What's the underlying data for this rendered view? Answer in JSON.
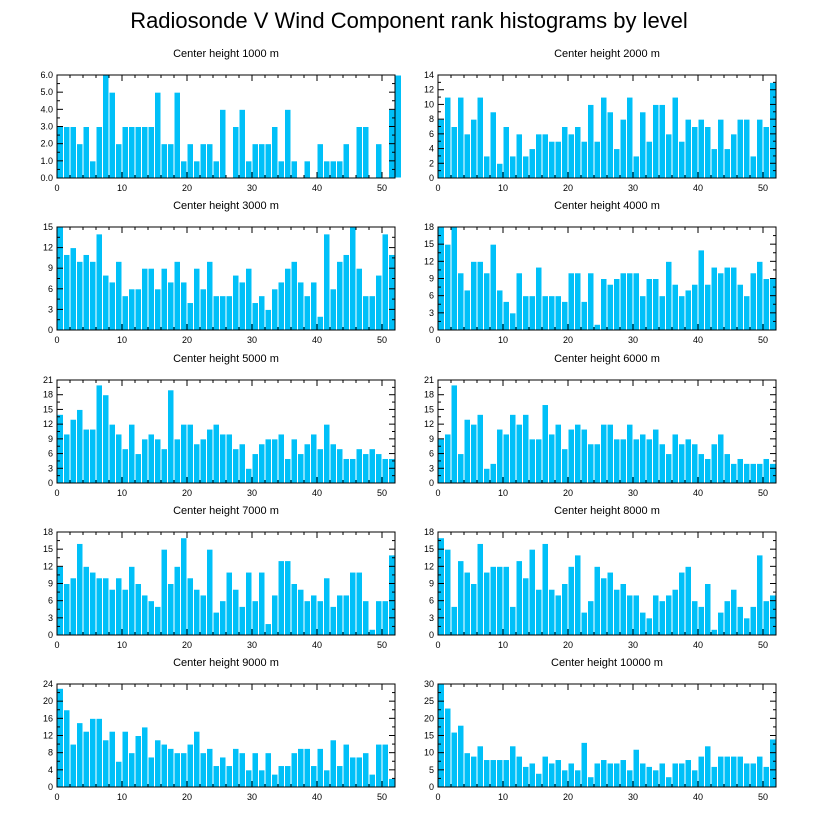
{
  "title": "Radiosonde V Wind Component rank histograms by level",
  "colors": {
    "bar": "#00c0f8",
    "bar_edge": "#ffffff",
    "axis": "#000000"
  },
  "chart_data": [
    {
      "type": "bar",
      "title": "Center height 1000 m",
      "xlim": [
        0,
        52
      ],
      "xticks": [
        0,
        10,
        20,
        30,
        40,
        50
      ],
      "ylim": [
        0,
        6
      ],
      "yticks": [
        0,
        1,
        2,
        3,
        4,
        5,
        6
      ],
      "ytick_labels": [
        "0.0",
        "1.0",
        "2.0",
        "3.0",
        "4.0",
        "5.0",
        "6.0"
      ],
      "values": [
        3,
        3,
        3,
        2,
        3,
        1,
        3,
        6,
        5,
        2,
        3,
        3,
        3,
        3,
        3,
        5,
        2,
        2,
        5,
        1,
        2,
        1,
        2,
        2,
        1,
        4,
        0,
        3,
        4,
        1,
        2,
        2,
        2,
        3,
        1,
        4,
        1,
        0,
        1,
        0,
        2,
        1,
        1,
        1,
        2,
        0,
        3,
        3,
        0,
        2,
        0,
        4,
        6
      ]
    },
    {
      "type": "bar",
      "title": "Center height 2000 m",
      "xlim": [
        0,
        52
      ],
      "xticks": [
        0,
        10,
        20,
        30,
        40,
        50
      ],
      "ylim": [
        0,
        14
      ],
      "yticks": [
        0,
        2,
        4,
        6,
        8,
        10,
        12,
        14
      ],
      "ytick_labels": [
        "0",
        "2",
        "4",
        "6",
        "8",
        "10",
        "12",
        "14"
      ],
      "values": [
        8,
        11,
        7,
        11,
        6,
        8,
        11,
        3,
        9,
        2,
        7,
        3,
        6,
        3,
        4,
        6,
        6,
        5,
        5,
        7,
        6,
        7,
        5,
        10,
        5,
        11,
        9,
        4,
        8,
        11,
        3,
        9,
        5,
        10,
        10,
        6,
        11,
        5,
        8,
        7,
        8,
        7,
        4,
        8,
        4,
        6,
        8,
        8,
        3,
        8,
        7,
        13
      ]
    },
    {
      "type": "bar",
      "title": "Center height 3000 m",
      "xlim": [
        0,
        52
      ],
      "xticks": [
        0,
        10,
        20,
        30,
        40,
        50
      ],
      "ylim": [
        0,
        15
      ],
      "yticks": [
        0,
        3,
        6,
        9,
        12,
        15
      ],
      "ytick_labels": [
        "0",
        "3",
        "6",
        "9",
        "12",
        "15"
      ],
      "values": [
        15,
        11,
        12,
        10,
        11,
        10,
        14,
        8,
        7,
        10,
        5,
        6,
        6,
        9,
        9,
        6,
        9,
        7,
        10,
        7,
        4,
        9,
        6,
        10,
        5,
        5,
        5,
        8,
        7,
        9,
        4,
        5,
        3,
        6,
        7,
        9,
        10,
        7,
        5,
        7,
        2,
        14,
        6,
        10,
        11,
        15,
        9,
        5,
        5,
        8,
        14,
        11
      ]
    },
    {
      "type": "bar",
      "title": "Center height 4000 m",
      "xlim": [
        0,
        52
      ],
      "xticks": [
        0,
        10,
        20,
        30,
        40,
        50
      ],
      "ylim": [
        0,
        18
      ],
      "yticks": [
        0,
        3,
        6,
        9,
        12,
        15,
        18
      ],
      "ytick_labels": [
        "0",
        "3",
        "6",
        "9",
        "12",
        "15",
        "18"
      ],
      "values": [
        18,
        15,
        18,
        10,
        7,
        12,
        12,
        10,
        15,
        7,
        5,
        3,
        10,
        6,
        6,
        11,
        6,
        6,
        6,
        5,
        10,
        10,
        5,
        10,
        1,
        9,
        8,
        9,
        10,
        10,
        10,
        6,
        9,
        9,
        6,
        12,
        8,
        6,
        7,
        8,
        14,
        8,
        11,
        10,
        11,
        11,
        8,
        6,
        10,
        12,
        9,
        9
      ]
    },
    {
      "type": "bar",
      "title": "Center height 5000 m",
      "xlim": [
        0,
        52
      ],
      "xticks": [
        0,
        10,
        20,
        30,
        40,
        50
      ],
      "ylim": [
        0,
        21
      ],
      "yticks": [
        0,
        3,
        6,
        9,
        12,
        15,
        18,
        21
      ],
      "ytick_labels": [
        "0",
        "3",
        "6",
        "9",
        "12",
        "15",
        "18",
        "21"
      ],
      "values": [
        14,
        10,
        13,
        15,
        11,
        11,
        20,
        18,
        12,
        10,
        7,
        12,
        6,
        9,
        10,
        9,
        7,
        19,
        9,
        12,
        12,
        8,
        9,
        11,
        12,
        10,
        10,
        7,
        8,
        3,
        6,
        8,
        9,
        9,
        10,
        5,
        9,
        6,
        8,
        10,
        7,
        12,
        8,
        7,
        5,
        5,
        7,
        6,
        7,
        6,
        5,
        5
      ]
    },
    {
      "type": "bar",
      "title": "Center height 6000 m",
      "xlim": [
        0,
        52
      ],
      "xticks": [
        0,
        10,
        20,
        30,
        40,
        50
      ],
      "ylim": [
        0,
        21
      ],
      "yticks": [
        0,
        3,
        6,
        9,
        12,
        15,
        18,
        21
      ],
      "ytick_labels": [
        "0",
        "3",
        "6",
        "9",
        "12",
        "15",
        "18",
        "21"
      ],
      "values": [
        9,
        10,
        20,
        6,
        13,
        12,
        14,
        3,
        4,
        11,
        10,
        14,
        12,
        14,
        9,
        9,
        16,
        10,
        12,
        7,
        11,
        12,
        11,
        8,
        8,
        12,
        12,
        9,
        9,
        12,
        9,
        10,
        9,
        11,
        8,
        6,
        10,
        8,
        9,
        8,
        6,
        5,
        8,
        10,
        6,
        4,
        5,
        4,
        4,
        4,
        5,
        4
      ]
    },
    {
      "type": "bar",
      "title": "Center height 7000 m",
      "xlim": [
        0,
        52
      ],
      "xticks": [
        0,
        10,
        20,
        30,
        40,
        50
      ],
      "ylim": [
        0,
        18
      ],
      "yticks": [
        0,
        3,
        6,
        9,
        12,
        15,
        18
      ],
      "ytick_labels": [
        "0",
        "3",
        "6",
        "9",
        "12",
        "15",
        "18"
      ],
      "values": [
        12,
        9,
        10,
        16,
        12,
        11,
        10,
        10,
        8,
        10,
        8,
        12,
        9,
        7,
        6,
        5,
        15,
        9,
        12,
        17,
        10,
        8,
        7,
        15,
        4,
        6,
        11,
        8,
        5,
        11,
        6,
        11,
        2,
        7,
        13,
        13,
        9,
        8,
        6,
        7,
        6,
        10,
        5,
        7,
        7,
        11,
        11,
        6,
        1,
        6,
        6,
        14
      ]
    },
    {
      "type": "bar",
      "title": "Center height 8000 m",
      "xlim": [
        0,
        52
      ],
      "xticks": [
        0,
        10,
        20,
        30,
        40,
        50
      ],
      "ylim": [
        0,
        18
      ],
      "yticks": [
        0,
        3,
        6,
        9,
        12,
        15,
        18
      ],
      "ytick_labels": [
        "0",
        "3",
        "6",
        "9",
        "12",
        "15",
        "18"
      ],
      "values": [
        17,
        15,
        5,
        13,
        11,
        9,
        16,
        11,
        12,
        12,
        12,
        5,
        13,
        10,
        15,
        8,
        16,
        8,
        7,
        9,
        12,
        14,
        4,
        6,
        12,
        10,
        11,
        8,
        9,
        7,
        7,
        4,
        3,
        7,
        6,
        7,
        8,
        11,
        12,
        6,
        5,
        9,
        1,
        4,
        6,
        8,
        5,
        3,
        5,
        14,
        6,
        7
      ]
    },
    {
      "type": "bar",
      "title": "Center height 9000 m",
      "xlim": [
        0,
        52
      ],
      "xticks": [
        0,
        10,
        20,
        30,
        40,
        50
      ],
      "ylim": [
        0,
        24
      ],
      "yticks": [
        0,
        4,
        8,
        12,
        16,
        20,
        24
      ],
      "ytick_labels": [
        "0",
        "4",
        "8",
        "12",
        "16",
        "20",
        "24"
      ],
      "values": [
        23,
        18,
        10,
        15,
        13,
        16,
        16,
        11,
        13,
        6,
        13,
        8,
        12,
        14,
        7,
        11,
        10,
        9,
        8,
        8,
        10,
        13,
        8,
        9,
        5,
        7,
        5,
        9,
        8,
        4,
        8,
        4,
        8,
        3,
        5,
        5,
        8,
        9,
        9,
        5,
        9,
        4,
        11,
        5,
        10,
        7,
        7,
        8,
        3,
        10,
        10,
        2
      ]
    },
    {
      "type": "bar",
      "title": "Center height 10000 m",
      "xlim": [
        0,
        52
      ],
      "xticks": [
        0,
        10,
        20,
        30,
        40,
        50
      ],
      "ylim": [
        0,
        30
      ],
      "yticks": [
        0,
        5,
        10,
        15,
        20,
        25,
        30
      ],
      "ytick_labels": [
        "0",
        "5",
        "10",
        "15",
        "20",
        "25",
        "30"
      ],
      "values": [
        30,
        23,
        16,
        18,
        10,
        9,
        12,
        8,
        8,
        8,
        8,
        12,
        9,
        6,
        7,
        4,
        9,
        7,
        8,
        5,
        7,
        5,
        13,
        3,
        7,
        8,
        7,
        7,
        8,
        5,
        11,
        7,
        6,
        5,
        7,
        3,
        7,
        7,
        8,
        5,
        9,
        12,
        6,
        9,
        9,
        9,
        9,
        7,
        7,
        9,
        6,
        14
      ]
    }
  ]
}
